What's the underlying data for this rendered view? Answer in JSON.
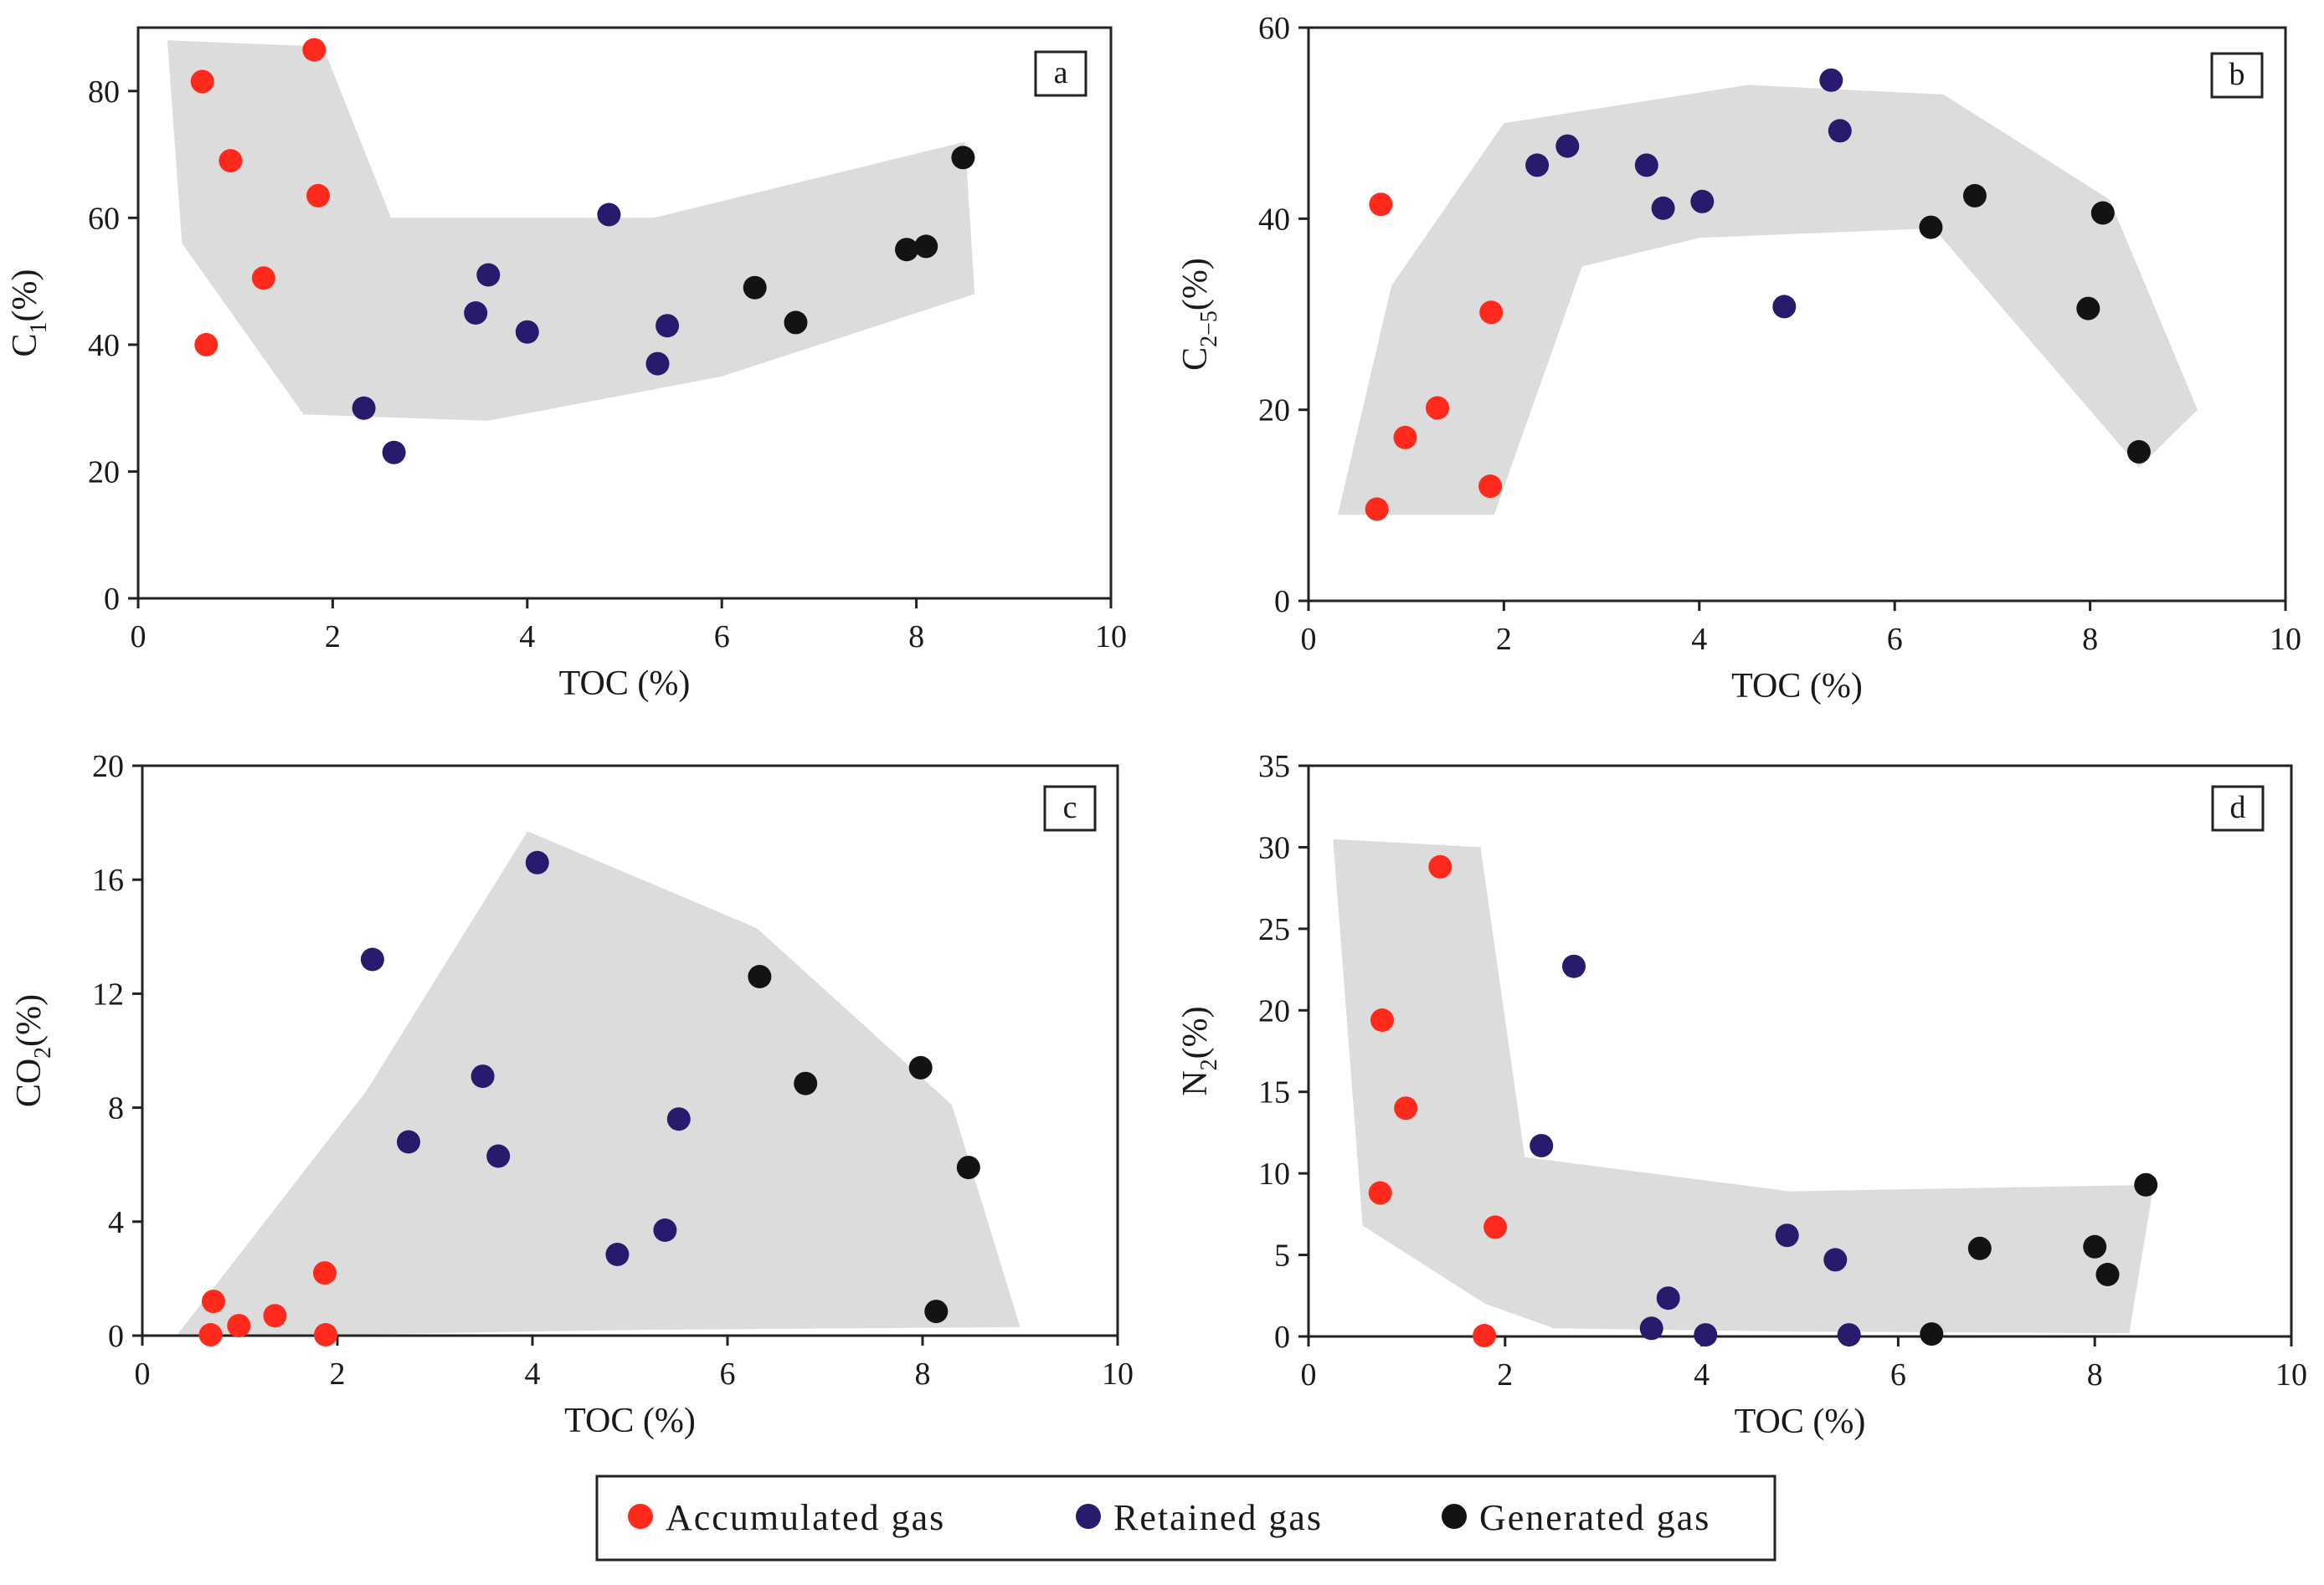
{
  "colors": {
    "accumulated": "#ff2a1c",
    "retained": "#2a1a6e",
    "generated": "#151311",
    "envelope": "#dcdcdc",
    "axis": "#222222"
  },
  "legend": {
    "items": [
      {
        "label": "Accumulated gas",
        "color": "#ff2a1c"
      },
      {
        "label": "Retained gas",
        "color": "#2a1a6e"
      },
      {
        "label": "Generated gas",
        "color": "#151311"
      }
    ]
  },
  "chart_data": [
    {
      "type": "scatter",
      "panel": "a",
      "xlabel": "TOC (%)",
      "ylabel": "C",
      "ylabel_sub": "1",
      "ylabel_suffix": "(%)",
      "xlim": [
        0,
        10
      ],
      "ylim": [
        0,
        90
      ],
      "xticks": [
        0,
        2,
        4,
        6,
        8,
        10
      ],
      "yticks": [
        0,
        20,
        40,
        60,
        80
      ],
      "envelope": [
        [
          0.3,
          88
        ],
        [
          1.9,
          87
        ],
        [
          2.6,
          60
        ],
        [
          5.3,
          60
        ],
        [
          8.5,
          72
        ],
        [
          8.6,
          48
        ],
        [
          6.0,
          35
        ],
        [
          3.6,
          28
        ],
        [
          1.7,
          29
        ],
        [
          0.45,
          56
        ]
      ],
      "series": [
        {
          "name": "Accumulated gas",
          "points": [
            [
              0.66,
              81.5
            ],
            [
              1.81,
              86.5
            ],
            [
              0.95,
              69
            ],
            [
              1.85,
              63.5
            ],
            [
              1.29,
              50.5
            ],
            [
              0.7,
              40
            ]
          ]
        },
        {
          "name": "Retained gas",
          "points": [
            [
              4.84,
              60.5
            ],
            [
              3.6,
              51
            ],
            [
              3.47,
              45
            ],
            [
              4.0,
              42
            ],
            [
              5.44,
              43
            ],
            [
              5.34,
              37
            ],
            [
              2.32,
              30
            ],
            [
              2.63,
              23
            ]
          ]
        },
        {
          "name": "Generated gas",
          "points": [
            [
              8.48,
              69.5
            ],
            [
              6.34,
              49
            ],
            [
              6.76,
              43.5
            ],
            [
              7.9,
              55
            ],
            [
              8.1,
              55.5
            ]
          ]
        }
      ]
    },
    {
      "type": "scatter",
      "panel": "b",
      "xlabel": "TOC (%)",
      "ylabel": "C",
      "ylabel_sub": "2−5",
      "ylabel_suffix": "(%)",
      "xlim": [
        0,
        10
      ],
      "ylim": [
        0,
        60
      ],
      "xticks": [
        0,
        2,
        4,
        6,
        8,
        10
      ],
      "yticks": [
        0,
        20,
        40,
        60
      ],
      "envelope": [
        [
          0.3,
          9
        ],
        [
          0.85,
          33
        ],
        [
          2.0,
          50
        ],
        [
          4.5,
          54
        ],
        [
          6.5,
          53
        ],
        [
          8.2,
          42
        ],
        [
          9.1,
          20
        ],
        [
          8.5,
          14
        ],
        [
          6.4,
          39
        ],
        [
          4.0,
          38
        ],
        [
          2.8,
          35
        ],
        [
          1.9,
          9
        ]
      ],
      "series": [
        {
          "name": "Accumulated gas",
          "points": [
            [
              0.74,
              41.5
            ],
            [
              1.87,
              30.2
            ],
            [
              1.32,
              20.2
            ],
            [
              0.99,
              17.1
            ],
            [
              1.86,
              12
            ],
            [
              0.7,
              9.6
            ]
          ]
        },
        {
          "name": "Retained gas",
          "points": [
            [
              5.35,
              54.5
            ],
            [
              5.44,
              49.2
            ],
            [
              2.34,
              45.6
            ],
            [
              2.65,
              47.6
            ],
            [
              3.46,
              45.6
            ],
            [
              3.63,
              41.1
            ],
            [
              4.03,
              41.8
            ],
            [
              4.87,
              30.8
            ]
          ]
        },
        {
          "name": "Generated gas",
          "points": [
            [
              6.37,
              39.1
            ],
            [
              6.82,
              42.4
            ],
            [
              8.13,
              40.6
            ],
            [
              7.98,
              30.6
            ],
            [
              8.5,
              15.6
            ]
          ]
        }
      ]
    },
    {
      "type": "scatter",
      "panel": "c",
      "xlabel": "TOC (%)",
      "ylabel": "CO",
      "ylabel_sub": "2",
      "ylabel_suffix": "(%)",
      "xlim": [
        0,
        10
      ],
      "ylim": [
        0,
        20
      ],
      "xticks": [
        0,
        2,
        4,
        6,
        8,
        10
      ],
      "yticks": [
        0,
        4,
        8,
        12,
        16,
        20
      ],
      "envelope": [
        [
          0.35,
          0
        ],
        [
          2.3,
          8.6
        ],
        [
          3.95,
          17.7
        ],
        [
          6.3,
          14.3
        ],
        [
          8.3,
          8.1
        ],
        [
          9.0,
          0.3
        ],
        [
          5.0,
          0.2
        ],
        [
          1.5,
          0
        ]
      ],
      "series": [
        {
          "name": "Accumulated gas",
          "points": [
            [
              0.73,
              1.2
            ],
            [
              1.36,
              0.7
            ],
            [
              0.99,
              0.35
            ],
            [
              0.7,
              0.03
            ],
            [
              1.87,
              2.2
            ],
            [
              1.88,
              0.03
            ]
          ]
        },
        {
          "name": "Retained gas",
          "points": [
            [
              4.05,
              16.6
            ],
            [
              2.36,
              13.2
            ],
            [
              3.49,
              9.1
            ],
            [
              2.73,
              6.8
            ],
            [
              3.65,
              6.3
            ],
            [
              5.5,
              7.6
            ],
            [
              5.36,
              3.7
            ],
            [
              4.87,
              2.85
            ]
          ]
        },
        {
          "name": "Generated gas",
          "points": [
            [
              6.33,
              12.6
            ],
            [
              7.98,
              9.4
            ],
            [
              6.8,
              8.85
            ],
            [
              8.47,
              5.9
            ],
            [
              8.14,
              0.85
            ]
          ]
        }
      ]
    },
    {
      "type": "scatter",
      "panel": "d",
      "xlabel": "TOC (%)",
      "ylabel": "N",
      "ylabel_sub": "2",
      "ylabel_suffix": "(%)",
      "xlim": [
        0,
        10
      ],
      "ylim": [
        0,
        35
      ],
      "xticks": [
        0,
        2,
        4,
        6,
        8,
        10
      ],
      "yticks": [
        0,
        5,
        10,
        15,
        20,
        25,
        30,
        35
      ],
      "envelope": [
        [
          0.25,
          30.5
        ],
        [
          1.75,
          30
        ],
        [
          2.2,
          11
        ],
        [
          4.9,
          8.9
        ],
        [
          8.6,
          9.3
        ],
        [
          8.35,
          0.2
        ],
        [
          5.0,
          0.3
        ],
        [
          2.5,
          0.5
        ],
        [
          1.8,
          2
        ],
        [
          0.55,
          6.8
        ]
      ],
      "series": [
        {
          "name": "Accumulated gas",
          "points": [
            [
              1.34,
              28.8
            ],
            [
              0.75,
              19.4
            ],
            [
              0.99,
              14
            ],
            [
              0.73,
              8.8
            ],
            [
              1.9,
              6.7
            ],
            [
              1.79,
              0.05
            ]
          ]
        },
        {
          "name": "Retained gas",
          "points": [
            [
              2.7,
              22.7
            ],
            [
              2.37,
              11.7
            ],
            [
              4.87,
              6.2
            ],
            [
              5.36,
              4.7
            ],
            [
              3.66,
              2.35
            ],
            [
              3.49,
              0.5
            ],
            [
              4.04,
              0.1
            ],
            [
              5.5,
              0.1
            ]
          ]
        },
        {
          "name": "Generated gas",
          "points": [
            [
              8.52,
              9.3
            ],
            [
              6.83,
              5.4
            ],
            [
              8.0,
              5.5
            ],
            [
              8.13,
              3.8
            ],
            [
              6.34,
              0.15
            ]
          ]
        }
      ]
    }
  ]
}
